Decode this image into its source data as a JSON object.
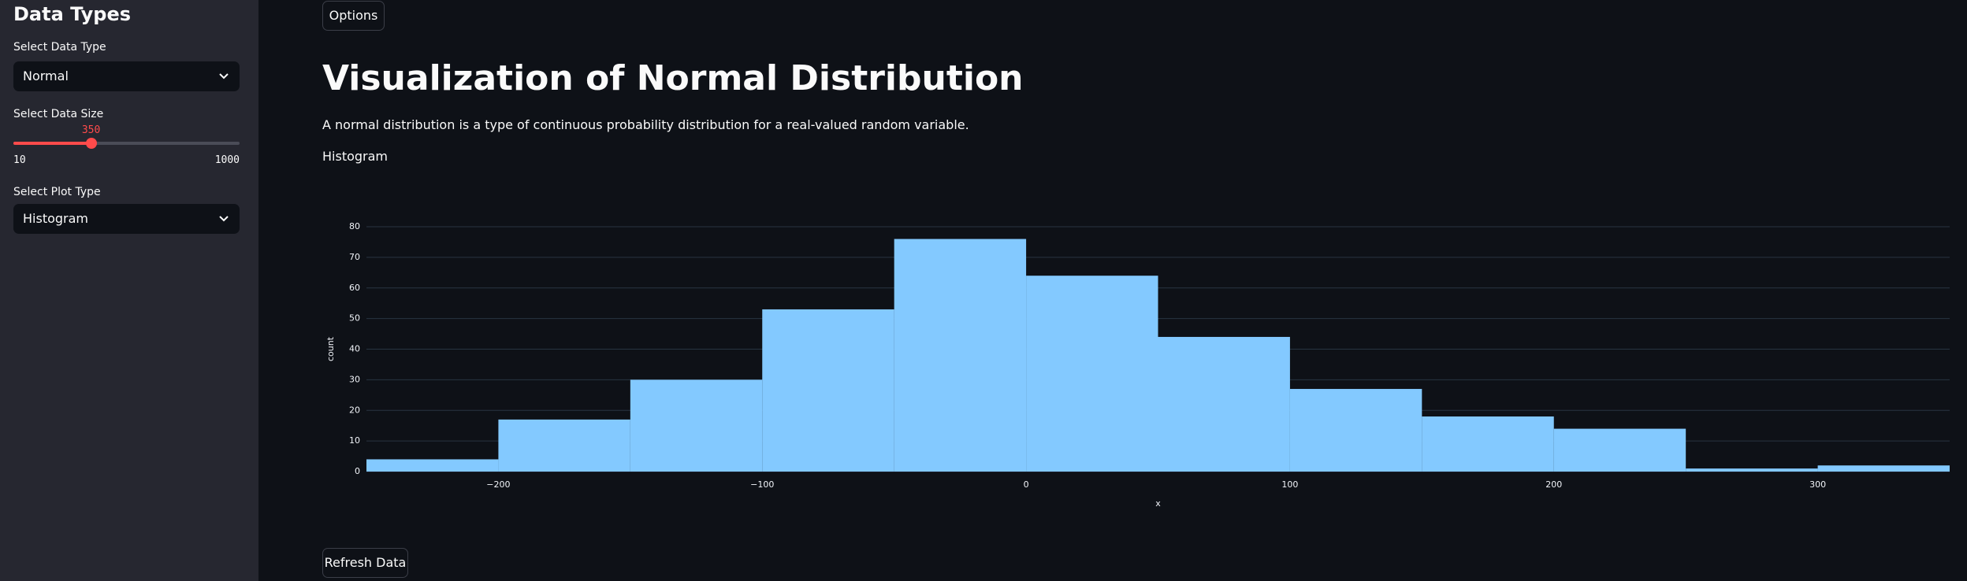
{
  "sidebar": {
    "title": "Data Types",
    "data_type": {
      "label": "Select Data Type",
      "value": "Normal"
    },
    "data_size": {
      "label": "Select Data Size",
      "value": 350,
      "min": 10,
      "max": 1000
    },
    "plot_type": {
      "label": "Select Plot Type",
      "value": "Histogram"
    }
  },
  "main": {
    "options_button": "Options",
    "title": "Visualization of Normal Distribution",
    "description": "A normal distribution is a type of continuous probability distribution for a real-valued random variable.",
    "subheader": "Histogram",
    "refresh_button": "Refresh Data"
  },
  "chart_data": {
    "type": "histogram",
    "x_label": "x",
    "y_label": "count",
    "bins": [
      -250,
      -200,
      -150,
      -100,
      -50,
      0,
      50,
      100,
      150,
      200,
      250,
      300,
      350
    ],
    "values": [
      4,
      17,
      30,
      53,
      76,
      64,
      44,
      27,
      18,
      14,
      1,
      2
    ],
    "color": "#83c9ff",
    "xlim": [
      -250,
      350
    ],
    "ylim": [
      0,
      80
    ],
    "xticks": [
      {
        "value": -200,
        "label": "−200"
      },
      {
        "value": -100,
        "label": "−100"
      },
      0,
      100,
      200,
      300
    ],
    "yticks": [
      0,
      10,
      20,
      30,
      40,
      50,
      60,
      70,
      80
    ],
    "grid": true
  }
}
